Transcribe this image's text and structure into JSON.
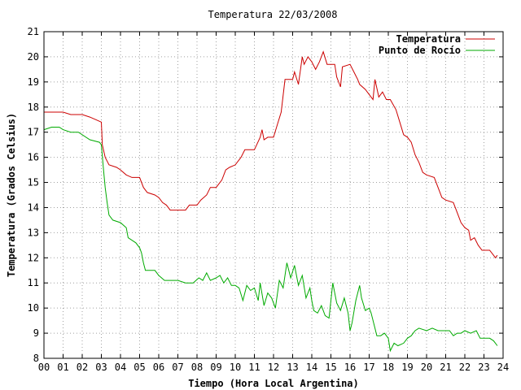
{
  "chart_data": {
    "type": "line",
    "title": "Temperatura 22/03/2008",
    "xlabel": "Tiempo (Hora Local Argentina)",
    "ylabel": "Temperatura (Grados Celsius)",
    "xlim": [
      0,
      24
    ],
    "ylim": [
      8,
      21
    ],
    "x_ticks": [
      "00",
      "01",
      "02",
      "03",
      "04",
      "05",
      "06",
      "07",
      "08",
      "09",
      "10",
      "11",
      "12",
      "13",
      "14",
      "15",
      "16",
      "17",
      "18",
      "19",
      "20",
      "21",
      "22",
      "23",
      "24"
    ],
    "y_ticks": [
      8,
      9,
      10,
      11,
      12,
      13,
      14,
      15,
      16,
      17,
      18,
      19,
      20,
      21
    ],
    "grid": true,
    "legend_position": "top-right",
    "series": [
      {
        "name": "Temperatura",
        "color": "#cc0000",
        "points": [
          [
            0,
            17.8
          ],
          [
            0.5,
            17.8
          ],
          [
            1,
            17.8
          ],
          [
            1.4,
            17.7
          ],
          [
            2,
            17.7
          ],
          [
            2.4,
            17.6
          ],
          [
            2.7,
            17.5
          ],
          [
            3.0,
            17.4
          ],
          [
            3.05,
            16.5
          ],
          [
            3.2,
            16.0
          ],
          [
            3.4,
            15.7
          ],
          [
            3.8,
            15.6
          ],
          [
            4.0,
            15.5
          ],
          [
            4.3,
            15.3
          ],
          [
            4.6,
            15.2
          ],
          [
            5.0,
            15.2
          ],
          [
            5.2,
            14.8
          ],
          [
            5.4,
            14.6
          ],
          [
            5.8,
            14.5
          ],
          [
            6.0,
            14.4
          ],
          [
            6.2,
            14.2
          ],
          [
            6.4,
            14.1
          ],
          [
            6.6,
            13.9
          ],
          [
            7.0,
            13.9
          ],
          [
            7.4,
            13.9
          ],
          [
            7.6,
            14.1
          ],
          [
            8.0,
            14.1
          ],
          [
            8.2,
            14.3
          ],
          [
            8.5,
            14.5
          ],
          [
            8.7,
            14.8
          ],
          [
            9.0,
            14.8
          ],
          [
            9.3,
            15.1
          ],
          [
            9.5,
            15.5
          ],
          [
            9.7,
            15.6
          ],
          [
            10.0,
            15.7
          ],
          [
            10.3,
            16.0
          ],
          [
            10.5,
            16.3
          ],
          [
            11.0,
            16.3
          ],
          [
            11.3,
            16.8
          ],
          [
            11.4,
            17.1
          ],
          [
            11.5,
            16.7
          ],
          [
            11.7,
            16.8
          ],
          [
            12.0,
            16.8
          ],
          [
            12.2,
            17.3
          ],
          [
            12.4,
            17.8
          ],
          [
            12.6,
            19.1
          ],
          [
            13.0,
            19.1
          ],
          [
            13.1,
            19.4
          ],
          [
            13.3,
            18.9
          ],
          [
            13.5,
            20.0
          ],
          [
            13.6,
            19.7
          ],
          [
            13.8,
            20.0
          ],
          [
            14.0,
            19.8
          ],
          [
            14.2,
            19.5
          ],
          [
            14.4,
            19.8
          ],
          [
            14.6,
            20.2
          ],
          [
            14.8,
            19.7
          ],
          [
            15.0,
            19.7
          ],
          [
            15.2,
            19.7
          ],
          [
            15.3,
            19.2
          ],
          [
            15.5,
            18.8
          ],
          [
            15.6,
            19.6
          ],
          [
            16.0,
            19.7
          ],
          [
            16.2,
            19.4
          ],
          [
            16.4,
            19.1
          ],
          [
            16.5,
            18.9
          ],
          [
            16.8,
            18.7
          ],
          [
            17.0,
            18.5
          ],
          [
            17.2,
            18.3
          ],
          [
            17.3,
            19.1
          ],
          [
            17.5,
            18.4
          ],
          [
            17.7,
            18.6
          ],
          [
            17.9,
            18.3
          ],
          [
            18.1,
            18.3
          ],
          [
            18.4,
            17.9
          ],
          [
            18.6,
            17.4
          ],
          [
            18.8,
            16.9
          ],
          [
            19.0,
            16.8
          ],
          [
            19.2,
            16.6
          ],
          [
            19.4,
            16.1
          ],
          [
            19.6,
            15.8
          ],
          [
            19.8,
            15.4
          ],
          [
            20.0,
            15.3
          ],
          [
            20.4,
            15.2
          ],
          [
            20.6,
            14.8
          ],
          [
            20.8,
            14.4
          ],
          [
            21.0,
            14.3
          ],
          [
            21.4,
            14.2
          ],
          [
            21.6,
            13.8
          ],
          [
            21.8,
            13.4
          ],
          [
            22.0,
            13.2
          ],
          [
            22.2,
            13.1
          ],
          [
            22.3,
            12.7
          ],
          [
            22.5,
            12.8
          ],
          [
            22.7,
            12.5
          ],
          [
            22.9,
            12.3
          ],
          [
            23.0,
            12.3
          ],
          [
            23.3,
            12.3
          ],
          [
            23.5,
            12.1
          ],
          [
            23.6,
            12.0
          ],
          [
            23.7,
            12.1
          ]
        ]
      },
      {
        "name": "Punto de Rocío",
        "color": "#00aa00",
        "points": [
          [
            0,
            17.1
          ],
          [
            0.4,
            17.2
          ],
          [
            0.8,
            17.2
          ],
          [
            1.0,
            17.1
          ],
          [
            1.4,
            17.0
          ],
          [
            1.8,
            17.0
          ],
          [
            2.4,
            16.7
          ],
          [
            2.9,
            16.6
          ],
          [
            3.0,
            16.5
          ],
          [
            3.1,
            15.6
          ],
          [
            3.2,
            14.8
          ],
          [
            3.3,
            14.2
          ],
          [
            3.4,
            13.7
          ],
          [
            3.6,
            13.5
          ],
          [
            4.0,
            13.4
          ],
          [
            4.3,
            13.2
          ],
          [
            4.4,
            12.8
          ],
          [
            4.6,
            12.7
          ],
          [
            4.8,
            12.6
          ],
          [
            5.0,
            12.4
          ],
          [
            5.1,
            12.2
          ],
          [
            5.2,
            11.8
          ],
          [
            5.3,
            11.5
          ],
          [
            5.8,
            11.5
          ],
          [
            6.0,
            11.3
          ],
          [
            6.3,
            11.1
          ],
          [
            7.0,
            11.1
          ],
          [
            7.4,
            11.0
          ],
          [
            7.8,
            11.0
          ],
          [
            8.1,
            11.2
          ],
          [
            8.3,
            11.1
          ],
          [
            8.5,
            11.4
          ],
          [
            8.7,
            11.1
          ],
          [
            9.0,
            11.2
          ],
          [
            9.2,
            11.3
          ],
          [
            9.4,
            11.0
          ],
          [
            9.6,
            11.2
          ],
          [
            9.8,
            10.9
          ],
          [
            10.0,
            10.9
          ],
          [
            10.2,
            10.8
          ],
          [
            10.4,
            10.3
          ],
          [
            10.6,
            10.9
          ],
          [
            10.8,
            10.7
          ],
          [
            11.0,
            10.8
          ],
          [
            11.2,
            10.3
          ],
          [
            11.3,
            11.0
          ],
          [
            11.5,
            10.1
          ],
          [
            11.7,
            10.6
          ],
          [
            11.9,
            10.4
          ],
          [
            12.1,
            10.0
          ],
          [
            12.3,
            11.1
          ],
          [
            12.5,
            10.8
          ],
          [
            12.7,
            11.8
          ],
          [
            12.9,
            11.2
          ],
          [
            13.1,
            11.7
          ],
          [
            13.3,
            10.9
          ],
          [
            13.5,
            11.3
          ],
          [
            13.7,
            10.4
          ],
          [
            13.9,
            10.8
          ],
          [
            14.0,
            10.3
          ],
          [
            14.1,
            9.9
          ],
          [
            14.3,
            9.8
          ],
          [
            14.5,
            10.1
          ],
          [
            14.7,
            9.7
          ],
          [
            14.9,
            9.6
          ],
          [
            15.1,
            11.0
          ],
          [
            15.3,
            10.2
          ],
          [
            15.5,
            9.9
          ],
          [
            15.7,
            10.4
          ],
          [
            15.9,
            9.8
          ],
          [
            16.0,
            9.1
          ],
          [
            16.1,
            9.4
          ],
          [
            16.3,
            10.3
          ],
          [
            16.5,
            10.9
          ],
          [
            16.6,
            10.4
          ],
          [
            16.8,
            9.9
          ],
          [
            17.0,
            10.0
          ],
          [
            17.1,
            9.8
          ],
          [
            17.3,
            9.2
          ],
          [
            17.4,
            8.9
          ],
          [
            17.6,
            8.9
          ],
          [
            17.8,
            9.0
          ],
          [
            18.0,
            8.8
          ],
          [
            18.1,
            8.3
          ],
          [
            18.3,
            8.6
          ],
          [
            18.5,
            8.5
          ],
          [
            18.8,
            8.6
          ],
          [
            19.0,
            8.8
          ],
          [
            19.2,
            8.9
          ],
          [
            19.4,
            9.1
          ],
          [
            19.6,
            9.2
          ],
          [
            20.0,
            9.1
          ],
          [
            20.3,
            9.2
          ],
          [
            20.6,
            9.1
          ],
          [
            21.0,
            9.1
          ],
          [
            21.2,
            9.1
          ],
          [
            21.4,
            8.9
          ],
          [
            21.6,
            9.0
          ],
          [
            21.8,
            9.0
          ],
          [
            22.0,
            9.1
          ],
          [
            22.3,
            9.0
          ],
          [
            22.6,
            9.1
          ],
          [
            22.8,
            8.8
          ],
          [
            23.0,
            8.8
          ],
          [
            23.3,
            8.8
          ],
          [
            23.5,
            8.7
          ],
          [
            23.7,
            8.5
          ]
        ]
      }
    ]
  }
}
